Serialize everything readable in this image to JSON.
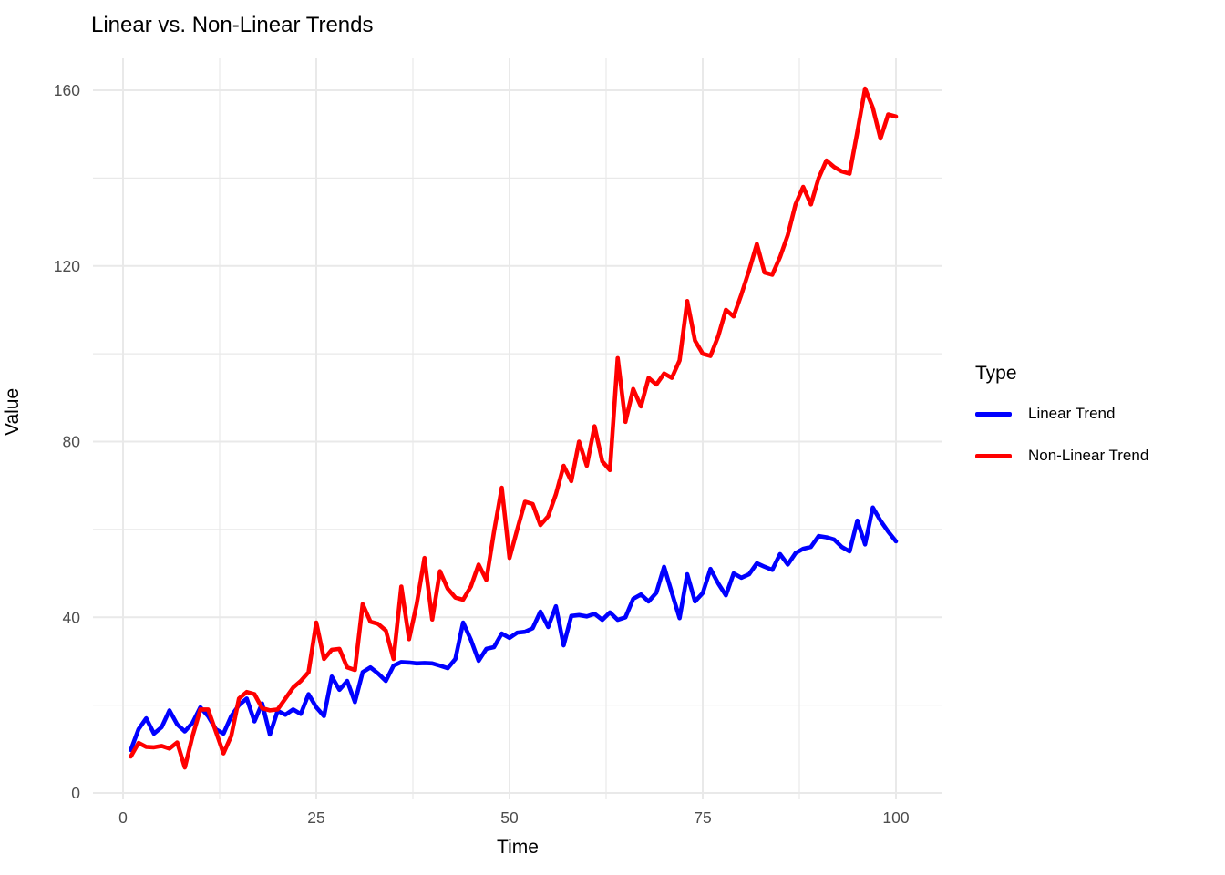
{
  "page": {
    "background": "#ffffff"
  },
  "chart_data": {
    "type": "line",
    "title": "Linear vs. Non-Linear Trends",
    "xlabel": "Time",
    "ylabel": "Value",
    "legend_title": "Type",
    "legend_position": "right",
    "grid": "on",
    "panel_background": "#ffffff",
    "gridline_color": "#e9e9e9",
    "tick_label_color": "#4d4d4d",
    "xlim": [
      0,
      100
    ],
    "ylim": [
      0,
      160
    ],
    "x_ticks": [
      0,
      25,
      50,
      75,
      100
    ],
    "x_minor_ticks": [
      12.5,
      37.5,
      62.5,
      87.5
    ],
    "y_ticks": [
      0,
      40,
      80,
      120,
      160
    ],
    "y_minor_ticks": [
      20,
      60,
      100,
      140
    ],
    "x": [
      1,
      2,
      3,
      4,
      5,
      6,
      7,
      8,
      9,
      10,
      11,
      12,
      13,
      14,
      15,
      16,
      17,
      18,
      19,
      20,
      21,
      22,
      23,
      24,
      25,
      26,
      27,
      28,
      29,
      30,
      31,
      32,
      33,
      34,
      35,
      36,
      37,
      38,
      39,
      40,
      41,
      42,
      43,
      44,
      45,
      46,
      47,
      48,
      49,
      50,
      51,
      52,
      53,
      54,
      55,
      56,
      57,
      58,
      59,
      60,
      61,
      62,
      63,
      64,
      65,
      66,
      67,
      68,
      69,
      70,
      71,
      72,
      73,
      74,
      75,
      76,
      77,
      78,
      79,
      80,
      81,
      82,
      83,
      84,
      85,
      86,
      87,
      88,
      89,
      90,
      91,
      92,
      93,
      94,
      95,
      96,
      97,
      98,
      99,
      100
    ],
    "series": [
      {
        "name": "Linear Trend",
        "color": "#0000ff",
        "values": [
          9.8,
          14.5,
          17,
          13.5,
          15,
          18.8,
          15.6,
          14,
          16,
          19.5,
          17.5,
          14.5,
          13.5,
          17.5,
          20,
          21.5,
          16.3,
          20.4,
          13.3,
          18.7,
          17.8,
          19,
          18,
          22.5,
          19.5,
          17.5,
          26.5,
          23.5,
          25.5,
          20.7,
          27.5,
          28.6,
          27.2,
          25.5,
          29,
          29.8,
          29.7,
          29.5,
          29.6,
          29.5,
          29,
          28.4,
          30.5,
          38.8,
          34.9,
          30.1,
          32.8,
          33.2,
          36.3,
          35.3,
          36.5,
          36.7,
          37.5,
          41.3,
          37.8,
          42.5,
          33.6,
          40.3,
          40.5,
          40.2,
          40.8,
          39.4,
          41.1,
          39.4,
          40,
          44.2,
          45.2,
          43.6,
          45.6,
          51.5,
          45.6,
          39.8,
          49.8,
          43.6,
          45.5,
          51,
          47.7,
          45,
          50,
          49,
          49.8,
          52.3,
          51.5,
          50.8,
          54.4,
          52,
          54.6,
          55.6,
          56,
          58.5,
          58.2,
          57.7,
          56,
          55,
          62,
          56.6,
          65,
          62,
          59.5,
          57.3
        ]
      },
      {
        "name": "Non-Linear Trend",
        "color": "#ff0000",
        "values": [
          8.3,
          11.4,
          10.5,
          10.4,
          10.7,
          10.1,
          11.5,
          5.8,
          13,
          19,
          19,
          14,
          9,
          13,
          21.5,
          23,
          22.5,
          19.3,
          18.8,
          19,
          21.5,
          24,
          25.5,
          27.5,
          38.8,
          30.5,
          32.6,
          32.8,
          28.6,
          28,
          43,
          39,
          38.5,
          37,
          30.5,
          47,
          35,
          43,
          53.5,
          39.5,
          50.5,
          46.5,
          44.5,
          44,
          47,
          52,
          48.5,
          59.5,
          69.5,
          53.5,
          60,
          66.3,
          65.8,
          61,
          63,
          68,
          74.5,
          71,
          80,
          74.5,
          83.5,
          75.5,
          73.5,
          99,
          84.5,
          92,
          88,
          94.5,
          93,
          95.5,
          94.5,
          98.5,
          112,
          103,
          100,
          99.5,
          104,
          110,
          108.5,
          113.5,
          119,
          125,
          118.5,
          118,
          122,
          127,
          134,
          138,
          134,
          140,
          144,
          142.5,
          141.5,
          141,
          150.5,
          160.4,
          156,
          149,
          154.5,
          154
        ]
      }
    ]
  }
}
